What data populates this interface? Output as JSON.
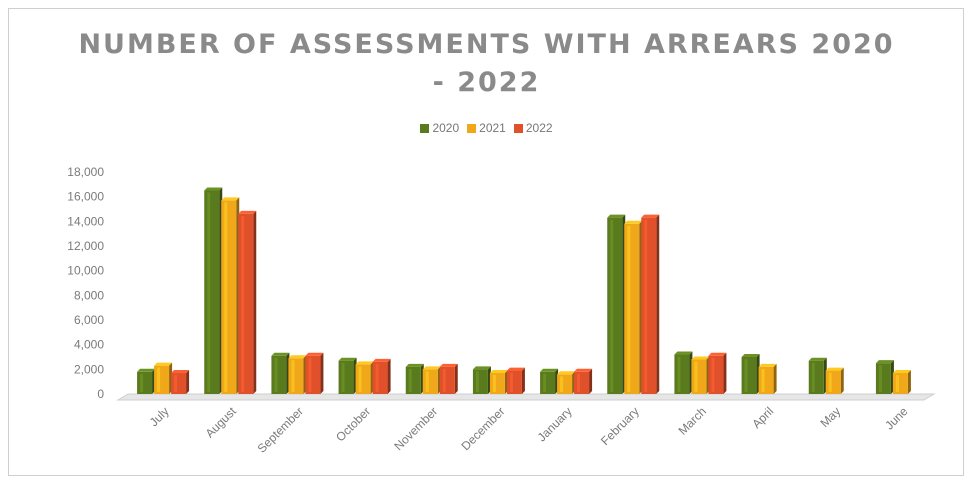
{
  "chart_data": {
    "type": "bar",
    "title_line1": "NUMBER OF ASSESSMENTS WITH ARREARS 2020",
    "title_line2": "- 2022",
    "categories": [
      "July",
      "August",
      "September",
      "October",
      "November",
      "December",
      "January",
      "February",
      "March",
      "April",
      "May",
      "June"
    ],
    "series": [
      {
        "name": "2020",
        "color": "#5a7a1e",
        "values": [
          1800,
          16500,
          3100,
          2700,
          2200,
          2000,
          1800,
          14300,
          3200,
          3000,
          2700,
          2500
        ]
      },
      {
        "name": "2021",
        "color": "#f0a81a",
        "values": [
          2300,
          15700,
          2900,
          2400,
          2000,
          1700,
          1600,
          13800,
          2800,
          2200,
          1900,
          1700
        ]
      },
      {
        "name": "2022",
        "color": "#e0502a",
        "values": [
          1700,
          14600,
          3100,
          2600,
          2200,
          1900,
          1800,
          14300,
          3100,
          null,
          null,
          null
        ]
      }
    ],
    "y_ticks": [
      "0",
      "2,000",
      "4,000",
      "6,000",
      "8,000",
      "10,000",
      "12,000",
      "14,000",
      "16,000",
      "18,000"
    ],
    "ylim": [
      0,
      18000
    ],
    "legend_position": "top",
    "grid": false
  }
}
